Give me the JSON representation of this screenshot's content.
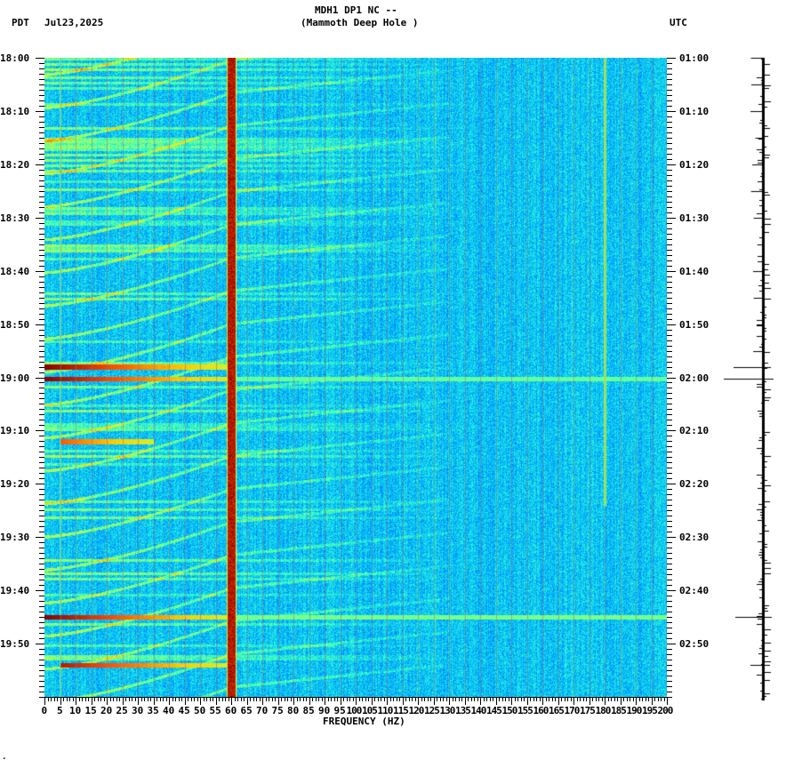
{
  "header": {
    "timezone_left": "PDT",
    "date": "Jul23,2025",
    "station_line": "MDH1 DP1 NC --",
    "station_name": "(Mammoth Deep Hole )",
    "timezone_right": "UTC"
  },
  "footer_mark": ".",
  "chart_data": {
    "type": "heatmap",
    "title": "MDH1 DP1 NC -- (Mammoth Deep Hole )",
    "subtitle": "PDT Jul23,2025",
    "xlabel": "FREQUENCY (HZ)",
    "ylabel_left": "PDT",
    "ylabel_right": "UTC",
    "xlim": [
      0,
      200
    ],
    "x_ticks": [
      0,
      5,
      10,
      15,
      20,
      25,
      30,
      35,
      40,
      45,
      50,
      55,
      60,
      65,
      70,
      75,
      80,
      85,
      90,
      95,
      100,
      105,
      110,
      115,
      120,
      125,
      130,
      135,
      140,
      145,
      150,
      155,
      160,
      165,
      170,
      175,
      180,
      185,
      190,
      195,
      200
    ],
    "y_ticks_left": [
      "18:00",
      "18:10",
      "18:20",
      "18:30",
      "18:40",
      "18:50",
      "19:00",
      "19:10",
      "19:20",
      "19:30",
      "19:40",
      "19:50"
    ],
    "y_ticks_right": [
      "01:00",
      "01:10",
      "01:20",
      "01:30",
      "01:40",
      "01:50",
      "02:00",
      "02:10",
      "02:20",
      "02:30",
      "02:40",
      "02:50"
    ],
    "y_range_minutes": [
      0,
      120
    ],
    "colormap": [
      "#00008f",
      "#0050ff",
      "#00b0ff",
      "#30ffd0",
      "#c0ff40",
      "#ffd000",
      "#ff5000",
      "#8b0000"
    ],
    "background_level": 0.28,
    "persistent_lines_hz": [
      {
        "freq": 60,
        "level": 1.0,
        "width_hz": 1.2
      },
      {
        "freq": 180,
        "level": 0.55,
        "width_hz": 0.4,
        "until_min": 84
      },
      {
        "freq": 5,
        "level": 0.45,
        "width_hz": 0.3
      }
    ],
    "broadband_events": [
      {
        "minute": 58.0,
        "peak_level": 1.0,
        "decay_to_hz": 60,
        "tail_level": 0.5
      },
      {
        "minute": 60.2,
        "peak_level": 1.0,
        "decay_to_hz": 200,
        "tail_level": 0.48
      },
      {
        "minute": 72.0,
        "peak_level": 0.85,
        "from_hz": 5,
        "decay_to_hz": 35,
        "tail_level": 0.3
      },
      {
        "minute": 105.0,
        "peak_level": 1.0,
        "decay_to_hz": 200,
        "tail_level": 0.5
      },
      {
        "minute": 114.0,
        "peak_level": 0.95,
        "from_hz": 5,
        "decay_to_hz": 60,
        "tail_level": 0.45
      }
    ],
    "notes": "Curved cyan arcs (Doppler-like harmonic sweeps) repeat roughly every 6 minutes across 0-120 Hz."
  },
  "seismic_trace": {
    "orientation": "vertical",
    "large_spikes_minute": [
      58.0,
      60.2,
      105.0,
      114.0
    ]
  }
}
